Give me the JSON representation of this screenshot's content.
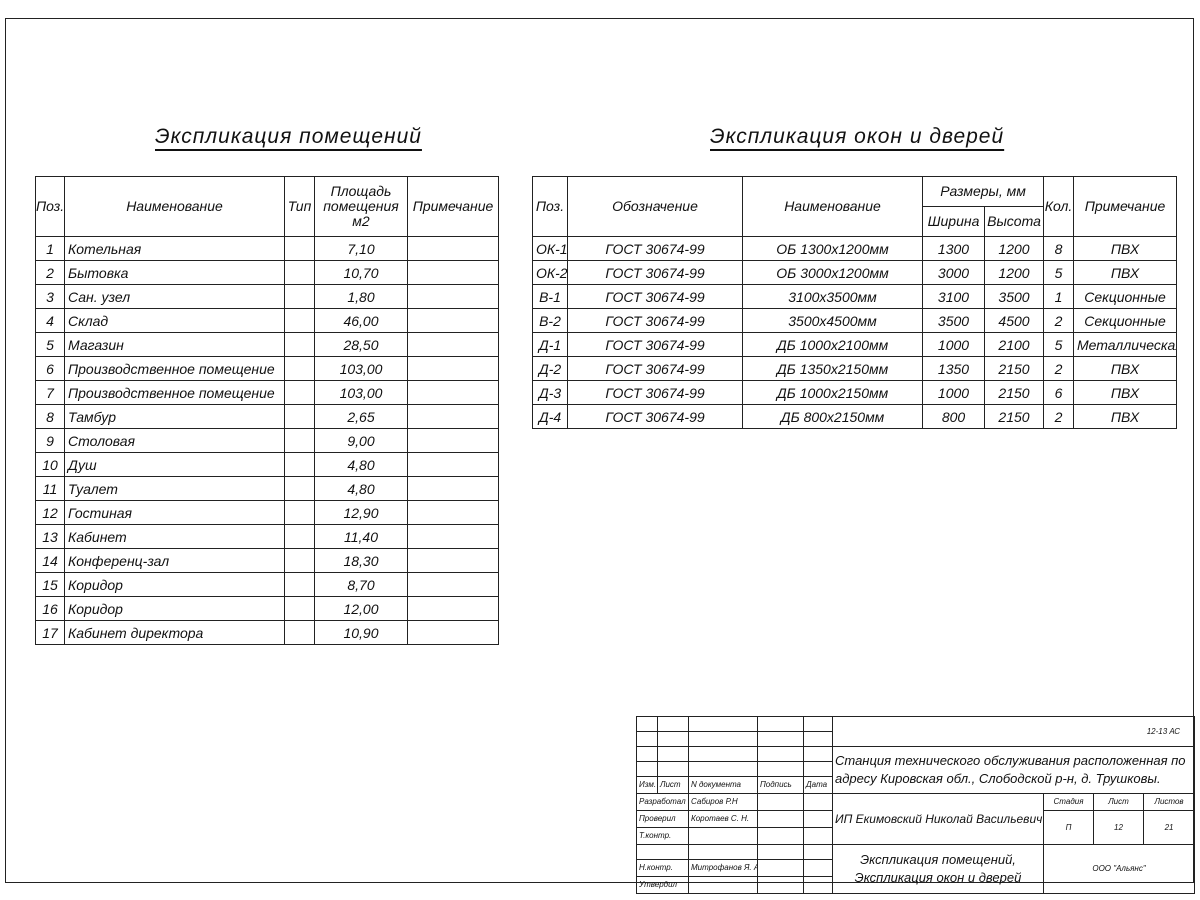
{
  "rooms": {
    "title": "Экспликация помещений",
    "headers": [
      "Поз.",
      "Наименование",
      "Тип",
      "Площадь помещения м2",
      "Примечание"
    ],
    "rows": [
      [
        "1",
        "Котельная",
        "",
        "7,10",
        ""
      ],
      [
        "2",
        "Бытовка",
        "",
        "10,70",
        ""
      ],
      [
        "3",
        "Сан. узел",
        "",
        "1,80",
        ""
      ],
      [
        "4",
        "Склад",
        "",
        "46,00",
        ""
      ],
      [
        "5",
        "Магазин",
        "",
        "28,50",
        ""
      ],
      [
        "6",
        "Производственное помещение",
        "",
        "103,00",
        ""
      ],
      [
        "7",
        "Производственное помещение",
        "",
        "103,00",
        ""
      ],
      [
        "8",
        "Тамбур",
        "",
        "2,65",
        ""
      ],
      [
        "9",
        "Столовая",
        "",
        "9,00",
        ""
      ],
      [
        "10",
        "Душ",
        "",
        "4,80",
        ""
      ],
      [
        "11",
        "Туалет",
        "",
        "4,80",
        ""
      ],
      [
        "12",
        "Гостиная",
        "",
        "12,90",
        ""
      ],
      [
        "13",
        "Кабинет",
        "",
        "11,40",
        ""
      ],
      [
        "14",
        "Конференц-зал",
        "",
        "18,30",
        ""
      ],
      [
        "15",
        "Коридор",
        "",
        "8,70",
        ""
      ],
      [
        "16",
        "Коридор",
        "",
        "12,00",
        ""
      ],
      [
        "17",
        "Кабинет директора",
        "",
        "10,90",
        ""
      ]
    ]
  },
  "openings": {
    "title": "Экспликация окон и дверей",
    "headers": {
      "pos": "Поз.",
      "designation": "Обозначение",
      "name": "Наименование",
      "sizes": "Размеры, мм",
      "width": "Ширина",
      "height": "Высота",
      "qty": "Кол.",
      "note": "Примечание"
    },
    "rows": [
      [
        "ОК-1",
        "ГОСТ 30674-99",
        "ОБ 1300х1200мм",
        "1300",
        "1200",
        "8",
        "ПВХ"
      ],
      [
        "ОК-2",
        "ГОСТ 30674-99",
        "ОБ 3000х1200мм",
        "3000",
        "1200",
        "5",
        "ПВХ"
      ],
      [
        "В-1",
        "ГОСТ 30674-99",
        "3100х3500мм",
        "3100",
        "3500",
        "1",
        "Секционные"
      ],
      [
        "В-2",
        "ГОСТ 30674-99",
        "3500х4500мм",
        "3500",
        "4500",
        "2",
        "Секционные"
      ],
      [
        "Д-1",
        "ГОСТ 30674-99",
        "ДБ 1000х2100мм",
        "1000",
        "2100",
        "5",
        "Металлическая"
      ],
      [
        "Д-2",
        "ГОСТ 30674-99",
        "ДБ 1350х2150мм",
        "1350",
        "2150",
        "2",
        "ПВХ"
      ],
      [
        "Д-3",
        "ГОСТ 30674-99",
        "ДБ 1000х2150мм",
        "1000",
        "2150",
        "6",
        "ПВХ"
      ],
      [
        "Д-4",
        "ГОСТ 30674-99",
        "ДБ 800х2150мм",
        "800",
        "2150",
        "2",
        "ПВХ"
      ]
    ]
  },
  "title_block": {
    "code": "12-13 АС",
    "project": "Станция технического обслуживания расположенная по адресу Кировская обл., Слободской р-н, д. Трушковы.",
    "col_labels": [
      "Изм.",
      "Лист",
      "N документа",
      "Подпись",
      "Дата"
    ],
    "signers": [
      {
        "role": "Разработал",
        "name": "Сабиров Р.Н"
      },
      {
        "role": "Проверил",
        "name": "Коротаев С. Н."
      },
      {
        "role": "Т.контр.",
        "name": ""
      },
      {
        "role": "",
        "name": ""
      },
      {
        "role": "Н.контр.",
        "name": "Митрофанов Я. А."
      },
      {
        "role": "Утвердил",
        "name": ""
      }
    ],
    "client": "ИП Екимовский Николай Васильевич",
    "stage_label": "Стадия",
    "sheet_label": "Лист",
    "sheets_label": "Листов",
    "stage": "П",
    "sheet": "12",
    "sheets": "21",
    "sheet_title": "Экспликация помещений, Экспликация окон и дверей",
    "company": "ООО \"Альянс\""
  }
}
